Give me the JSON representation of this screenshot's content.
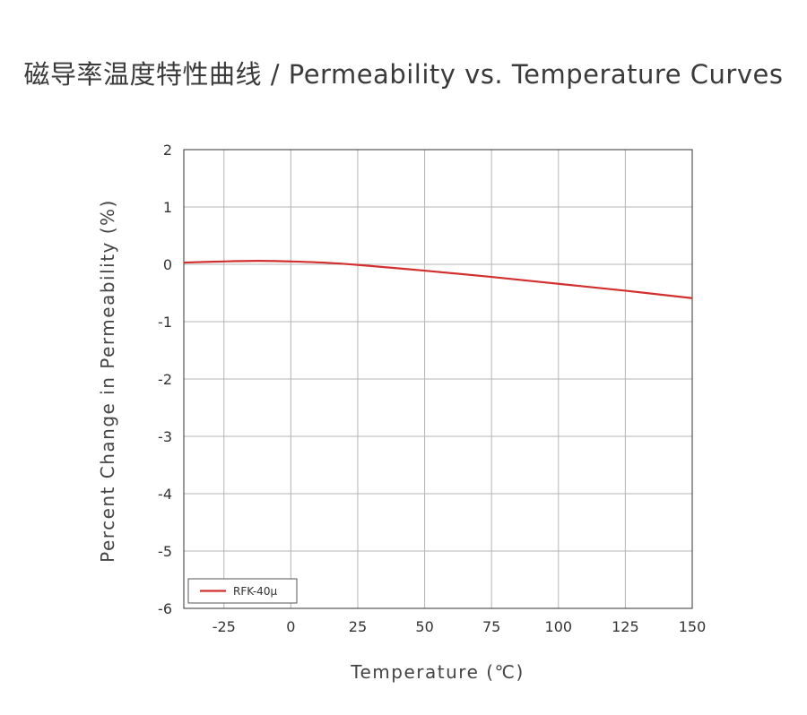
{
  "chart_data": {
    "type": "line",
    "title": "磁导率温度特性曲线 / Permeability vs. Temperature Curves",
    "xlabel": "Temperature (℃)",
    "ylabel": "Percent Change in Permeability (%)",
    "xlim": [
      -40,
      150
    ],
    "ylim": [
      -6,
      2
    ],
    "xticks": [
      -25,
      0,
      25,
      50,
      75,
      100,
      125,
      150
    ],
    "yticks": [
      2,
      1,
      0,
      -1,
      -2,
      -3,
      -4,
      -5,
      -6
    ],
    "xtick_labels": [
      "-25",
      "0",
      "25",
      "50",
      "75",
      "100",
      "125",
      "150"
    ],
    "ytick_labels": [
      "2",
      "1",
      "0",
      "-1",
      "-2",
      "-3",
      "-4",
      "-5",
      "-6"
    ],
    "grid": true,
    "legend_position": "bottom-left",
    "series": [
      {
        "name": "RFK-40μ",
        "color": "#d32f2f",
        "x": [
          -40,
          -25,
          -12,
          0,
          12,
          25,
          50,
          75,
          100,
          125,
          150
        ],
        "y": [
          0.03,
          0.05,
          0.06,
          0.05,
          0.03,
          -0.01,
          -0.11,
          -0.22,
          -0.34,
          -0.46,
          -0.59
        ]
      }
    ]
  }
}
